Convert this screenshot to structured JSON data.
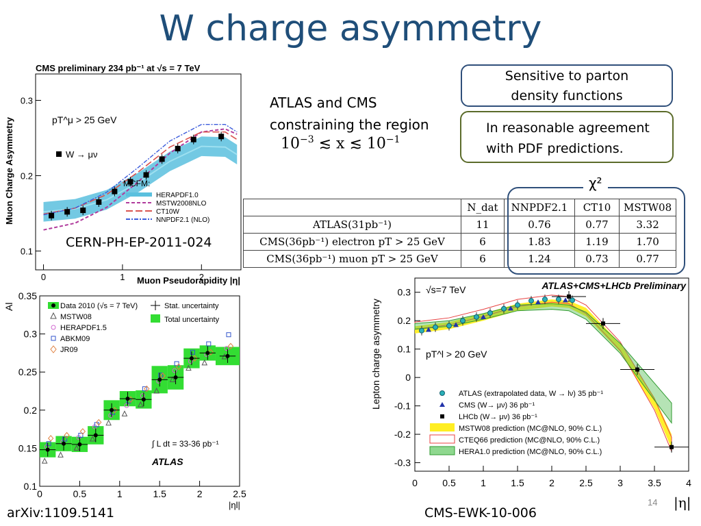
{
  "slide": {
    "title": "W charge asymmetry",
    "callout_1": [
      "Sensitive to parton",
      "density functions"
    ],
    "callout_2": [
      "In reasonable agreement",
      "with PDF predictions."
    ],
    "atlas_cms_text": [
      "ATLAS and CMS",
      "constraining the region"
    ],
    "x_region": {
      "lower": "10",
      "lower_exp": "−3",
      "mid": " ≲ x ≲ ",
      "upper": "10",
      "upper_exp": "−1"
    },
    "ref_cms": "CERN-PH-EP-2011-024",
    "ref_atlas": "arXiv:1109.5141",
    "ref_lhc": "CMS-EWK-10-006",
    "page_number": "14",
    "eta_label": "|η|",
    "chi2_label": "χ²"
  },
  "table": {
    "headers": [
      "",
      "N_dat",
      "NNPDF2.1",
      "CT10",
      "MSTW08"
    ],
    "rows": [
      [
        "ATLAS(31pb⁻¹)",
        "11",
        "0.76",
        "0.77",
        "3.32"
      ],
      [
        "CMS(36pb⁻¹) electron pT > 25 GeV",
        "6",
        "1.83",
        "1.19",
        "1.70"
      ],
      [
        "CMS(36pb⁻¹) muon pT > 25 GeV",
        "6",
        "1.24",
        "0.73",
        "0.77"
      ]
    ]
  },
  "chart_data": [
    {
      "type": "line",
      "title": "CMS preliminary   234 pb⁻¹ at √s = 7 TeV",
      "xlabel": "Muon Pseudorapidity |η|",
      "ylabel": "Muon Charge Asymmetry",
      "xlim": [
        -0.1,
        2.5
      ],
      "ylim": [
        0.075,
        0.335
      ],
      "xticks": [
        "0",
        "1",
        "2"
      ],
      "yticks": [
        "0.1",
        "0.2",
        "0.3"
      ],
      "annotation": "pT^μ > 25 GeV",
      "legend_header": "MCFM:",
      "data": {
        "name": "W → μν",
        "x": [
          0.1,
          0.3,
          0.5,
          0.7,
          0.9,
          1.1,
          1.3,
          1.5,
          1.7,
          1.9,
          2.25
        ],
        "y": [
          0.147,
          0.152,
          0.154,
          0.165,
          0.179,
          0.192,
          0.201,
          0.222,
          0.236,
          0.248,
          0.252
        ]
      },
      "series": [
        {
          "name": "HERAPDF1.0",
          "x": [
            0,
            0.4,
            0.8,
            1.2,
            1.6,
            2.0,
            2.3,
            2.45
          ],
          "y": [
            0.152,
            0.156,
            0.168,
            0.191,
            0.219,
            0.239,
            0.238,
            0.228
          ]
        },
        {
          "name": "MSTW2008NLO",
          "x": [
            0,
            0.4,
            0.8,
            1.2,
            1.6,
            2.0,
            2.3,
            2.45
          ],
          "y": [
            0.128,
            0.137,
            0.158,
            0.192,
            0.23,
            0.258,
            0.262,
            0.255
          ]
        },
        {
          "name": "CT10W",
          "x": [
            0,
            0.4,
            0.8,
            1.2,
            1.6,
            2.0,
            2.3,
            2.45
          ],
          "y": [
            0.149,
            0.157,
            0.175,
            0.205,
            0.238,
            0.258,
            0.258,
            0.248
          ]
        },
        {
          "name": "NNPDF2.1 (NLO)",
          "x": [
            0,
            0.4,
            0.8,
            1.2,
            1.6,
            2.0,
            2.3,
            2.45
          ],
          "y": [
            0.148,
            0.157,
            0.178,
            0.211,
            0.246,
            0.268,
            0.268,
            0.258
          ]
        }
      ]
    },
    {
      "type": "scatter",
      "title": "",
      "xlabel": "|ηl|",
      "ylabel": "Al",
      "xlim": [
        0,
        2.5
      ],
      "ylim": [
        0.1,
        0.35
      ],
      "xticks": [
        "0",
        "0.5",
        "1",
        "1.5",
        "2",
        "2.5"
      ],
      "yticks": [
        "0.1",
        "0.15",
        "0.2",
        "0.25",
        "0.3",
        "0.35"
      ],
      "legend": [
        "Data 2010 (√s = 7 TeV)",
        "MSTW08",
        "HERAPDF1.5",
        "ABKM09",
        "JR09",
        "Stat. uncertainty",
        "Total uncertainty"
      ],
      "annotation": [
        "∫ L dt = 33-36 pb⁻¹",
        "ATLAS"
      ],
      "data": {
        "name": "Data 2010",
        "x": [
          0.1,
          0.3,
          0.5,
          0.7,
          0.9,
          1.1,
          1.3,
          1.5,
          1.7,
          1.9,
          2.1,
          2.35
        ],
        "y": [
          0.148,
          0.156,
          0.155,
          0.167,
          0.2,
          0.215,
          0.214,
          0.24,
          0.243,
          0.268,
          0.275,
          0.271
        ],
        "total_unc": [
          0.01,
          0.01,
          0.01,
          0.012,
          0.013,
          0.01,
          0.012,
          0.018,
          0.016,
          0.013,
          0.01,
          0.012
        ]
      },
      "series": [
        {
          "name": "MSTW08",
          "x": [
            0.1,
            0.3,
            0.5,
            0.7,
            0.9,
            1.1,
            1.3,
            1.5,
            1.7,
            1.9,
            2.1,
            2.35
          ],
          "y": [
            0.133,
            0.141,
            0.15,
            0.162,
            0.183,
            0.195,
            0.207,
            0.225,
            0.24,
            0.255,
            0.262,
            0.27
          ]
        },
        {
          "name": "HERAPDF1.5",
          "x": [
            0.1,
            0.3,
            0.5,
            0.7,
            0.9,
            1.1,
            1.3,
            1.5,
            1.7,
            1.9,
            2.1,
            2.35
          ],
          "y": [
            0.152,
            0.158,
            0.164,
            0.178,
            0.193,
            0.206,
            0.219,
            0.238,
            0.252,
            0.264,
            0.273,
            0.281
          ]
        },
        {
          "name": "ABKM09",
          "x": [
            0.1,
            0.3,
            0.5,
            0.7,
            0.9,
            1.1,
            1.3,
            1.5,
            1.7,
            1.9,
            2.1,
            2.35
          ],
          "y": [
            0.156,
            0.162,
            0.167,
            0.181,
            0.197,
            0.212,
            0.228,
            0.246,
            0.261,
            0.276,
            0.287,
            0.299
          ]
        },
        {
          "name": "JR09",
          "x": [
            0.1,
            0.3,
            0.5,
            0.7,
            0.9,
            1.1,
            1.3,
            1.5,
            1.7,
            1.9,
            2.1,
            2.35
          ],
          "y": [
            0.163,
            0.167,
            0.172,
            0.184,
            0.2,
            0.214,
            0.228,
            0.245,
            0.257,
            0.268,
            0.276,
            0.284
          ]
        }
      ]
    },
    {
      "type": "line",
      "title": "ATLAS+CMS+LHCb Preliminary",
      "xlabel": "",
      "ylabel": "Lepton charge asymmetry",
      "xlim": [
        0,
        4
      ],
      "ylim": [
        -0.33,
        0.35
      ],
      "xticks": [
        "0",
        "0.5",
        "1",
        "1.5",
        "2",
        "2.5",
        "3",
        "3.5",
        "4"
      ],
      "yticks": [
        "0.3",
        "0.2",
        "0.1",
        "0",
        "-0.1",
        "-0.2",
        "-0.3"
      ],
      "annotation": [
        "√s=7 TeV",
        "pT^l > 20 GeV"
      ],
      "legend": [
        "ATLAS (extrapolated data, W → lν) 35 pb⁻¹",
        "CMS (W→ μν) 36 pb⁻¹",
        "LHCb (W→ μν) 36 pb⁻¹",
        "MSTW08 prediction (MC@NLO, 90% C.L.)",
        "CTEQ66 prediction (MC@NLO, 90% C.L.)",
        "HERA1.0 prediction (MC@NLO, 90% C.L.)"
      ],
      "atlas": {
        "x": [
          0.1,
          0.3,
          0.5,
          0.7,
          0.9,
          1.1,
          1.3,
          1.5,
          1.7,
          1.9,
          2.1,
          2.3
        ],
        "y": [
          0.165,
          0.177,
          0.182,
          0.2,
          0.213,
          0.227,
          0.242,
          0.255,
          0.27,
          0.275,
          0.275,
          0.272
        ]
      },
      "cms": {
        "x": [
          0.2,
          0.6,
          1.0,
          1.4,
          1.8,
          2.2
        ],
        "y": [
          0.168,
          0.185,
          0.213,
          0.243,
          0.265,
          0.272
        ]
      },
      "lhcb": {
        "x": [
          2.25,
          2.75,
          3.25,
          3.75
        ],
        "y": [
          0.285,
          0.19,
          0.028,
          -0.245
        ]
      },
      "series": [
        {
          "name": "MSTW08",
          "x": [
            0,
            0.5,
            1.0,
            1.5,
            2.0,
            2.25,
            2.5,
            3.0,
            3.5,
            3.75
          ],
          "lo": [
            0.155,
            0.17,
            0.2,
            0.235,
            0.25,
            0.245,
            0.215,
            0.09,
            -0.11,
            -0.25
          ],
          "hi": [
            0.18,
            0.195,
            0.225,
            0.26,
            0.275,
            0.27,
            0.245,
            0.12,
            -0.07,
            -0.2
          ]
        },
        {
          "name": "CTEQ66",
          "x": [
            0,
            0.5,
            1.0,
            1.5,
            2.0,
            2.25,
            2.5,
            3.0,
            3.5,
            3.75
          ],
          "lo": [
            0.17,
            0.185,
            0.215,
            0.25,
            0.265,
            0.26,
            0.225,
            0.095,
            -0.115,
            -0.26
          ],
          "hi": [
            0.195,
            0.21,
            0.24,
            0.275,
            0.29,
            0.285,
            0.255,
            0.125,
            -0.075,
            -0.21
          ]
        },
        {
          "name": "HERA1.0",
          "x": [
            0,
            0.5,
            1.0,
            1.5,
            2.0,
            2.25,
            2.5,
            3.0,
            3.5,
            3.75
          ],
          "lo": [
            0.17,
            0.18,
            0.205,
            0.235,
            0.24,
            0.235,
            0.205,
            0.085,
            -0.08,
            -0.16
          ],
          "hi": [
            0.19,
            0.2,
            0.225,
            0.255,
            0.26,
            0.255,
            0.23,
            0.12,
            -0.02,
            -0.09
          ]
        }
      ]
    }
  ],
  "colors": {
    "title": "#1f4e79",
    "hera_band": "#5bc0de",
    "mstw": "#b03a9c",
    "ct10w": "#d9534f",
    "nnpdf": "#3b5bdb",
    "green_band": "#33dd33",
    "yellow_band": "#ffee22"
  }
}
